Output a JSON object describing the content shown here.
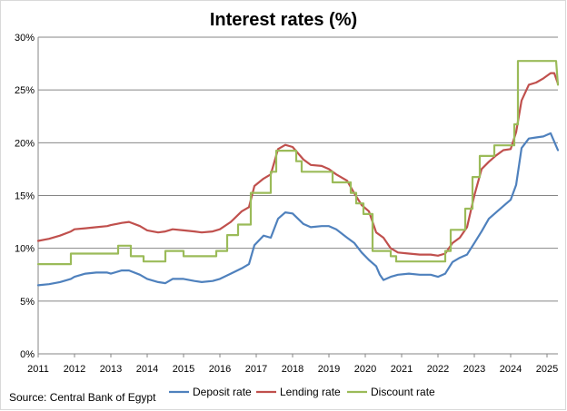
{
  "chart_data": {
    "type": "line",
    "title": "Interest rates (%)",
    "source": "Source: Central Bank of Egypt",
    "xlabel": "",
    "ylabel": "",
    "ylim": [
      0,
      30
    ],
    "xlim": [
      2011.0,
      2025.3
    ],
    "x_ticks": [
      "2011",
      "2012",
      "2013",
      "2014",
      "2015",
      "2016",
      "2017",
      "2018",
      "2019",
      "2020",
      "2021",
      "2022",
      "2023",
      "2024",
      "2025"
    ],
    "y_ticks": [
      "0%",
      "5%",
      "10%",
      "15%",
      "20%",
      "25%",
      "30%"
    ],
    "grid": "horizontal",
    "legend": "bottom",
    "series": [
      {
        "name": "Deposit rate",
        "color": "#4f81bd",
        "points": [
          [
            2011.0,
            6.5
          ],
          [
            2011.3,
            6.6
          ],
          [
            2011.6,
            6.8
          ],
          [
            2011.9,
            7.1
          ],
          [
            2012.0,
            7.3
          ],
          [
            2012.3,
            7.6
          ],
          [
            2012.6,
            7.7
          ],
          [
            2012.9,
            7.7
          ],
          [
            2013.0,
            7.6
          ],
          [
            2013.3,
            7.9
          ],
          [
            2013.5,
            7.9
          ],
          [
            2013.8,
            7.5
          ],
          [
            2014.0,
            7.1
          ],
          [
            2014.3,
            6.8
          ],
          [
            2014.5,
            6.7
          ],
          [
            2014.7,
            7.1
          ],
          [
            2015.0,
            7.1
          ],
          [
            2015.3,
            6.9
          ],
          [
            2015.5,
            6.8
          ],
          [
            2015.8,
            6.9
          ],
          [
            2016.0,
            7.1
          ],
          [
            2016.3,
            7.6
          ],
          [
            2016.6,
            8.1
          ],
          [
            2016.8,
            8.5
          ],
          [
            2016.95,
            10.3
          ],
          [
            2017.2,
            11.2
          ],
          [
            2017.4,
            11.0
          ],
          [
            2017.6,
            12.8
          ],
          [
            2017.8,
            13.4
          ],
          [
            2018.0,
            13.3
          ],
          [
            2018.3,
            12.3
          ],
          [
            2018.5,
            12.0
          ],
          [
            2018.8,
            12.1
          ],
          [
            2019.0,
            12.1
          ],
          [
            2019.2,
            11.8
          ],
          [
            2019.5,
            11.0
          ],
          [
            2019.7,
            10.5
          ],
          [
            2019.9,
            9.6
          ],
          [
            2020.1,
            8.9
          ],
          [
            2020.3,
            8.3
          ],
          [
            2020.4,
            7.5
          ],
          [
            2020.5,
            7.0
          ],
          [
            2020.7,
            7.3
          ],
          [
            2020.9,
            7.5
          ],
          [
            2021.2,
            7.6
          ],
          [
            2021.5,
            7.5
          ],
          [
            2021.8,
            7.5
          ],
          [
            2022.0,
            7.3
          ],
          [
            2022.2,
            7.6
          ],
          [
            2022.4,
            8.7
          ],
          [
            2022.6,
            9.1
          ],
          [
            2022.8,
            9.4
          ],
          [
            2023.0,
            10.5
          ],
          [
            2023.2,
            11.6
          ],
          [
            2023.4,
            12.8
          ],
          [
            2023.6,
            13.4
          ],
          [
            2023.8,
            14.0
          ],
          [
            2024.0,
            14.6
          ],
          [
            2024.15,
            16.0
          ],
          [
            2024.3,
            19.5
          ],
          [
            2024.5,
            20.4
          ],
          [
            2024.7,
            20.5
          ],
          [
            2024.9,
            20.6
          ],
          [
            2025.1,
            20.9
          ],
          [
            2025.2,
            20.1
          ],
          [
            2025.3,
            19.3
          ]
        ]
      },
      {
        "name": "Lending rate",
        "color": "#c0504d",
        "points": [
          [
            2011.0,
            10.7
          ],
          [
            2011.3,
            10.9
          ],
          [
            2011.6,
            11.2
          ],
          [
            2011.9,
            11.6
          ],
          [
            2012.0,
            11.8
          ],
          [
            2012.3,
            11.9
          ],
          [
            2012.6,
            12.0
          ],
          [
            2012.9,
            12.1
          ],
          [
            2013.0,
            12.2
          ],
          [
            2013.3,
            12.4
          ],
          [
            2013.5,
            12.5
          ],
          [
            2013.8,
            12.1
          ],
          [
            2014.0,
            11.7
          ],
          [
            2014.3,
            11.5
          ],
          [
            2014.5,
            11.6
          ],
          [
            2014.7,
            11.8
          ],
          [
            2015.0,
            11.7
          ],
          [
            2015.3,
            11.6
          ],
          [
            2015.5,
            11.5
          ],
          [
            2015.8,
            11.6
          ],
          [
            2016.0,
            11.8
          ],
          [
            2016.3,
            12.5
          ],
          [
            2016.6,
            13.5
          ],
          [
            2016.8,
            13.9
          ],
          [
            2016.95,
            15.9
          ],
          [
            2017.2,
            16.6
          ],
          [
            2017.4,
            17.0
          ],
          [
            2017.6,
            19.4
          ],
          [
            2017.8,
            19.8
          ],
          [
            2018.0,
            19.6
          ],
          [
            2018.3,
            18.4
          ],
          [
            2018.5,
            17.9
          ],
          [
            2018.8,
            17.8
          ],
          [
            2019.0,
            17.5
          ],
          [
            2019.2,
            17.0
          ],
          [
            2019.5,
            16.4
          ],
          [
            2019.7,
            15.2
          ],
          [
            2019.9,
            14.1
          ],
          [
            2020.1,
            13.5
          ],
          [
            2020.3,
            11.5
          ],
          [
            2020.5,
            11.0
          ],
          [
            2020.7,
            10.0
          ],
          [
            2020.9,
            9.6
          ],
          [
            2021.2,
            9.5
          ],
          [
            2021.5,
            9.4
          ],
          [
            2021.8,
            9.4
          ],
          [
            2022.0,
            9.3
          ],
          [
            2022.2,
            9.5
          ],
          [
            2022.4,
            10.5
          ],
          [
            2022.6,
            11.0
          ],
          [
            2022.8,
            12.0
          ],
          [
            2023.0,
            15.0
          ],
          [
            2023.2,
            17.5
          ],
          [
            2023.4,
            18.2
          ],
          [
            2023.6,
            18.8
          ],
          [
            2023.8,
            19.3
          ],
          [
            2024.0,
            19.4
          ],
          [
            2024.15,
            21.0
          ],
          [
            2024.3,
            24.0
          ],
          [
            2024.5,
            25.5
          ],
          [
            2024.7,
            25.7
          ],
          [
            2024.9,
            26.1
          ],
          [
            2025.1,
            26.6
          ],
          [
            2025.2,
            26.6
          ],
          [
            2025.3,
            25.6
          ]
        ]
      },
      {
        "name": "Discount rate",
        "color": "#9bbb59",
        "points": [
          [
            2011.0,
            8.5
          ],
          [
            2011.9,
            8.5
          ],
          [
            2011.9,
            9.5
          ],
          [
            2013.2,
            9.5
          ],
          [
            2013.2,
            10.25
          ],
          [
            2013.55,
            10.25
          ],
          [
            2013.55,
            9.25
          ],
          [
            2013.9,
            9.25
          ],
          [
            2013.9,
            8.75
          ],
          [
            2014.5,
            8.75
          ],
          [
            2014.5,
            9.75
          ],
          [
            2015.0,
            9.75
          ],
          [
            2015.0,
            9.25
          ],
          [
            2015.9,
            9.25
          ],
          [
            2015.9,
            9.75
          ],
          [
            2016.2,
            9.75
          ],
          [
            2016.2,
            11.25
          ],
          [
            2016.5,
            11.25
          ],
          [
            2016.5,
            12.25
          ],
          [
            2016.85,
            12.25
          ],
          [
            2016.85,
            15.25
          ],
          [
            2017.4,
            15.25
          ],
          [
            2017.4,
            17.25
          ],
          [
            2017.55,
            17.25
          ],
          [
            2017.55,
            19.25
          ],
          [
            2018.1,
            19.25
          ],
          [
            2018.1,
            18.25
          ],
          [
            2018.25,
            18.25
          ],
          [
            2018.25,
            17.25
          ],
          [
            2019.1,
            17.25
          ],
          [
            2019.1,
            16.25
          ],
          [
            2019.6,
            16.25
          ],
          [
            2019.6,
            15.25
          ],
          [
            2019.75,
            15.25
          ],
          [
            2019.75,
            14.25
          ],
          [
            2019.95,
            14.25
          ],
          [
            2019.95,
            13.25
          ],
          [
            2020.2,
            13.25
          ],
          [
            2020.2,
            9.75
          ],
          [
            2020.7,
            9.75
          ],
          [
            2020.7,
            9.25
          ],
          [
            2020.85,
            9.25
          ],
          [
            2020.85,
            8.75
          ],
          [
            2022.2,
            8.75
          ],
          [
            2022.2,
            9.75
          ],
          [
            2022.35,
            9.75
          ],
          [
            2022.35,
            11.75
          ],
          [
            2022.75,
            11.75
          ],
          [
            2022.75,
            13.75
          ],
          [
            2022.95,
            13.75
          ],
          [
            2022.95,
            16.75
          ],
          [
            2023.15,
            16.75
          ],
          [
            2023.15,
            18.75
          ],
          [
            2023.55,
            18.75
          ],
          [
            2023.55,
            19.75
          ],
          [
            2024.1,
            19.75
          ],
          [
            2024.1,
            21.75
          ],
          [
            2024.2,
            21.75
          ],
          [
            2024.2,
            27.75
          ],
          [
            2025.25,
            27.75
          ],
          [
            2025.3,
            25.5
          ]
        ]
      }
    ]
  }
}
